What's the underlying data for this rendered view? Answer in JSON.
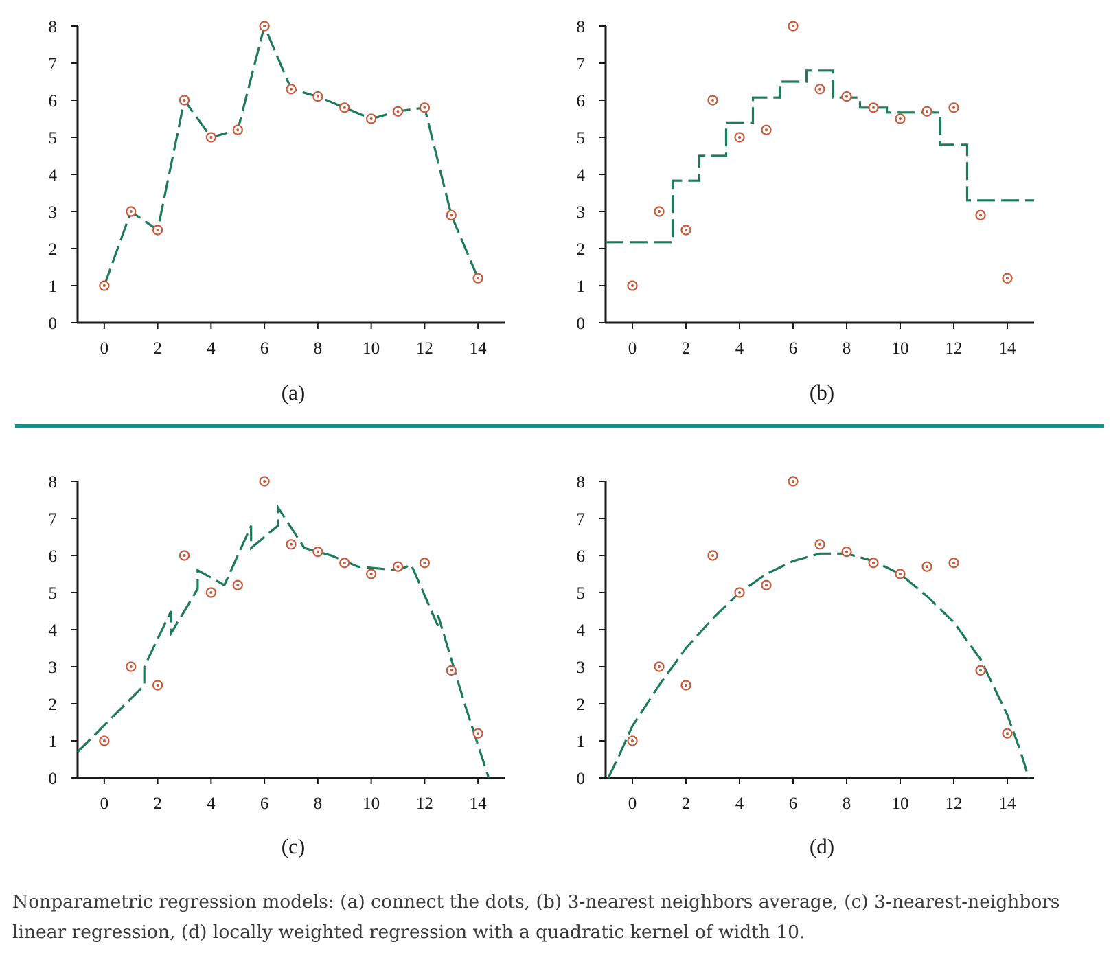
{
  "colors": {
    "line": "#1d7a5a",
    "point": "#c65a3c",
    "divider": "#14918a",
    "axis": "#1a1a1a"
  },
  "caption": "Nonparametric regression models: (a) connect the dots, (b) 3-nearest neighbors average, (c) 3-nearest-neighbors linear regression, (d) locally weighted regression with a quadratic kernel of width 10.",
  "chart_data": [
    {
      "type": "scatter",
      "panel_label": "(a)",
      "xlim": [
        -1,
        15
      ],
      "ylim": [
        0,
        8
      ],
      "xticks": [
        0,
        2,
        4,
        6,
        8,
        10,
        12,
        14
      ],
      "yticks": [
        0,
        1,
        2,
        3,
        4,
        5,
        6,
        7,
        8
      ],
      "points": {
        "x": [
          0,
          1,
          2,
          3,
          4,
          5,
          6,
          7,
          8,
          9,
          10,
          11,
          12,
          13,
          14
        ],
        "y": [
          1,
          3,
          2.5,
          6,
          5,
          5.2,
          8,
          6.3,
          6.1,
          5.8,
          5.5,
          5.7,
          5.8,
          2.9,
          1.2
        ]
      },
      "fit_line": [
        [
          0,
          1
        ],
        [
          1,
          3
        ],
        [
          2,
          2.5
        ],
        [
          3,
          6
        ],
        [
          4,
          5
        ],
        [
          5,
          5.2
        ],
        [
          6,
          8
        ],
        [
          7,
          6.3
        ],
        [
          8,
          6.1
        ],
        [
          9,
          5.8
        ],
        [
          10,
          5.5
        ],
        [
          11,
          5.7
        ],
        [
          12,
          5.8
        ],
        [
          13,
          2.9
        ],
        [
          14,
          1.2
        ]
      ]
    },
    {
      "type": "scatter",
      "panel_label": "(b)",
      "xlim": [
        -1,
        15
      ],
      "ylim": [
        0,
        8
      ],
      "xticks": [
        0,
        2,
        4,
        6,
        8,
        10,
        12,
        14
      ],
      "yticks": [
        0,
        1,
        2,
        3,
        4,
        5,
        6,
        7,
        8
      ],
      "points": {
        "x": [
          0,
          1,
          2,
          3,
          4,
          5,
          6,
          7,
          8,
          9,
          10,
          11,
          12,
          13,
          14
        ],
        "y": [
          1,
          3,
          2.5,
          6,
          5,
          5.2,
          8,
          6.3,
          6.1,
          5.8,
          5.5,
          5.7,
          5.8,
          2.9,
          1.2
        ]
      },
      "fit_line": [
        [
          -1,
          2.17
        ],
        [
          1.5,
          2.17
        ],
        [
          1.5,
          3.83
        ],
        [
          2.5,
          3.83
        ],
        [
          2.5,
          4.5
        ],
        [
          3.5,
          4.5
        ],
        [
          3.5,
          5.4
        ],
        [
          4.5,
          5.4
        ],
        [
          4.5,
          6.07
        ],
        [
          5.5,
          6.07
        ],
        [
          5.5,
          6.5
        ],
        [
          6.5,
          6.5
        ],
        [
          6.5,
          6.8
        ],
        [
          7.5,
          6.8
        ],
        [
          7.5,
          6.07
        ],
        [
          8.5,
          6.07
        ],
        [
          8.5,
          5.8
        ],
        [
          9.5,
          5.8
        ],
        [
          9.5,
          5.67
        ],
        [
          11.5,
          5.67
        ],
        [
          11.5,
          4.8
        ],
        [
          12.5,
          4.8
        ],
        [
          12.5,
          3.3
        ],
        [
          15,
          3.3
        ]
      ]
    },
    {
      "type": "scatter",
      "panel_label": "(c)",
      "xlim": [
        -1,
        15
      ],
      "ylim": [
        0,
        8
      ],
      "xticks": [
        0,
        2,
        4,
        6,
        8,
        10,
        12,
        14
      ],
      "yticks": [
        0,
        1,
        2,
        3,
        4,
        5,
        6,
        7,
        8
      ],
      "points": {
        "x": [
          0,
          1,
          2,
          3,
          4,
          5,
          6,
          7,
          8,
          9,
          10,
          11,
          12,
          13,
          14
        ],
        "y": [
          1,
          3,
          2.5,
          6,
          5,
          5.2,
          8,
          6.3,
          6.1,
          5.8,
          5.5,
          5.7,
          5.8,
          2.9,
          1.2
        ]
      },
      "fit_line": [
        [
          -1,
          0.7
        ],
        [
          1.5,
          2.5
        ],
        [
          1.5,
          3.0
        ],
        [
          2.5,
          4.5
        ],
        [
          2.5,
          3.9
        ],
        [
          3.5,
          5.1
        ],
        [
          3.5,
          5.6
        ],
        [
          4.5,
          5.2
        ],
        [
          5.5,
          6.8
        ],
        [
          5.5,
          6.2
        ],
        [
          6.5,
          6.8
        ],
        [
          6.5,
          7.3
        ],
        [
          7.5,
          6.2
        ],
        [
          8.5,
          6.0
        ],
        [
          9.5,
          5.7
        ],
        [
          11,
          5.6
        ],
        [
          11.5,
          5.75
        ],
        [
          12.5,
          4.1
        ],
        [
          12.5,
          4.4
        ],
        [
          13.5,
          2.0
        ],
        [
          14.4,
          0
        ]
      ]
    },
    {
      "type": "scatter",
      "panel_label": "(d)",
      "xlim": [
        -1,
        15
      ],
      "ylim": [
        0,
        8
      ],
      "xticks": [
        0,
        2,
        4,
        6,
        8,
        10,
        12,
        14
      ],
      "yticks": [
        0,
        1,
        2,
        3,
        4,
        5,
        6,
        7,
        8
      ],
      "points": {
        "x": [
          0,
          1,
          2,
          3,
          4,
          5,
          6,
          7,
          8,
          9,
          10,
          11,
          12,
          13,
          14
        ],
        "y": [
          1,
          3,
          2.5,
          6,
          5,
          5.2,
          8,
          6.3,
          6.1,
          5.8,
          5.5,
          5.7,
          5.8,
          2.9,
          1.2
        ]
      },
      "fit_line": [
        [
          -0.9,
          0
        ],
        [
          -0.5,
          0.6
        ],
        [
          0,
          1.4
        ],
        [
          1,
          2.5
        ],
        [
          2,
          3.5
        ],
        [
          3,
          4.3
        ],
        [
          4,
          5.0
        ],
        [
          5,
          5.5
        ],
        [
          6,
          5.85
        ],
        [
          7,
          6.05
        ],
        [
          8,
          6.05
        ],
        [
          9,
          5.85
        ],
        [
          10,
          5.5
        ],
        [
          11,
          4.9
        ],
        [
          12,
          4.2
        ],
        [
          13,
          3.2
        ],
        [
          14,
          1.7
        ],
        [
          14.5,
          0.7
        ],
        [
          14.8,
          0
        ]
      ]
    }
  ]
}
